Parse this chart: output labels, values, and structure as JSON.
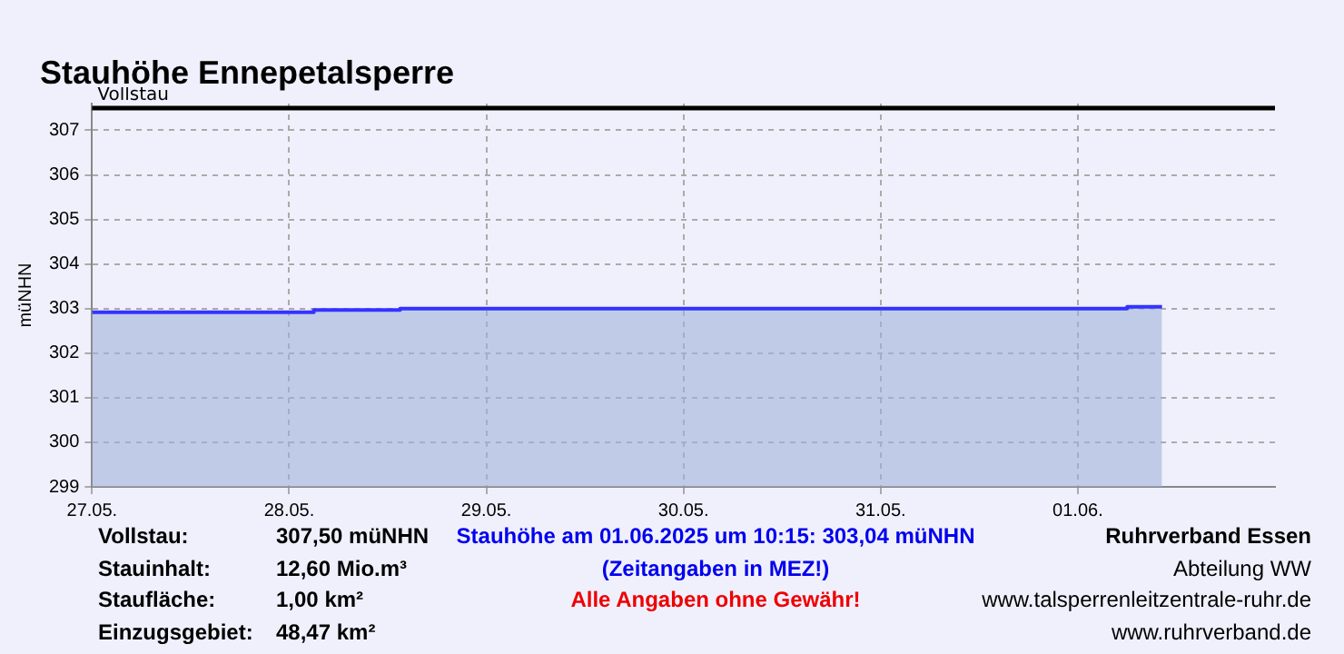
{
  "chart_data": {
    "type": "area",
    "title": "Stauhöhe Ennepetalsperre",
    "ylabel": "müNHN",
    "x": [
      "2025-05-27T00:00",
      "2025-05-28T03:00",
      "2025-05-28T03:00",
      "2025-05-28T13:30",
      "2025-05-28T13:30",
      "2025-06-01T06:00",
      "2025-06-01T06:00",
      "2025-06-01T10:15"
    ],
    "series": [
      {
        "color": "#3333ff",
        "values": [
          302.92,
          302.92,
          302.97,
          302.97,
          303.0,
          303.0,
          303.04,
          303.04
        ]
      }
    ],
    "xlim": [
      "2025-05-27",
      "2025-06-02"
    ],
    "xticks": [
      {
        "value": "2025-05-27",
        "label": "27.05."
      },
      {
        "value": "2025-05-28",
        "label": "28.05."
      },
      {
        "value": "2025-05-29",
        "label": "29.05."
      },
      {
        "value": "2025-05-30",
        "label": "30.05."
      },
      {
        "value": "2025-05-31",
        "label": "31.05."
      },
      {
        "value": "2025-06-01",
        "label": "01.06."
      }
    ],
    "ylim": [
      299,
      307.6
    ],
    "yticks": [
      299,
      300,
      301,
      302,
      303,
      304,
      305,
      306,
      307
    ],
    "grid": true,
    "legend": false,
    "ref_lines": [
      {
        "axis": "y",
        "value": 307.5,
        "label": "Vollstau",
        "color": "#000000"
      }
    ],
    "annotations": [
      "Vollstau:",
      "307,50 müNHN",
      "Stauhöhe am 01.06.2025 um 10:15: 303,04  müNHN",
      "Ruhrverband Essen",
      "Stauinhalt:",
      "12,60 Mio.m³",
      "(Zeitangaben in MEZ!)",
      "Abteilung WW",
      "Staufläche:",
      "1,00 km²",
      "Alle Angaben ohne Gewähr!",
      "www.talsperrenleitzentrale-ruhr.de",
      "Einzugsgebiet:",
      "48,47 km²",
      "www.ruhrverband.de"
    ]
  }
}
